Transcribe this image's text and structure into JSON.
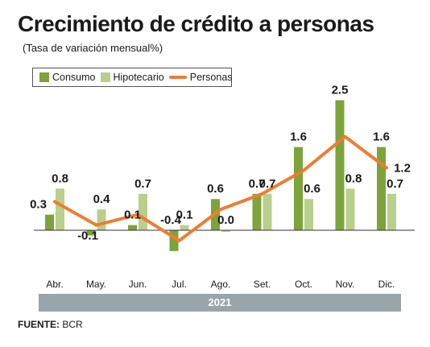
{
  "title": "Crecimiento de crédito a personas",
  "subtitle": "(Tasa de variación mensual%)",
  "source": {
    "label": "FUENTE:",
    "value": "BCR"
  },
  "colors": {
    "consumo": "#7ca43a",
    "hipotecario": "#b9cf8d",
    "personas": "#ee7d31",
    "year_bar": "#98a6ab"
  },
  "chart_data": {
    "type": "bar",
    "categories": [
      "Abr.",
      "May.",
      "Jun.",
      "Jul.",
      "Ago.",
      "Set.",
      "Oct.",
      "Nov.",
      "Dic."
    ],
    "series": [
      {
        "name": "Consumo",
        "type": "bar",
        "values": [
          0.3,
          -0.1,
          0.1,
          -0.4,
          0.6,
          0.7,
          1.6,
          2.5,
          1.6
        ]
      },
      {
        "name": "Hipotecario",
        "type": "bar",
        "values": [
          0.8,
          0.4,
          0.7,
          0.1,
          0.0,
          0.7,
          0.6,
          0.8,
          0.7
        ]
      },
      {
        "name": "Personas",
        "type": "line",
        "values": [
          0.55,
          0.1,
          0.3,
          -0.2,
          0.4,
          0.7,
          1.15,
          1.8,
          1.2
        ]
      }
    ],
    "data_labels": {
      "Consumo": [
        "0.3",
        "-0.1",
        "0.1",
        "-0.4",
        "0.6",
        "0.7",
        "1.6",
        "2.5",
        "1.6"
      ],
      "Hipotecario": [
        "0.8",
        "0.4",
        "0.7",
        "0.1",
        "0.0",
        "0.7",
        "0.6",
        "0.8",
        "0.7"
      ],
      "Personas": [
        "",
        "",
        "",
        "",
        "",
        "",
        "",
        "",
        "1.2"
      ]
    },
    "year_label": "2021",
    "ylim": [
      -0.45,
      2.6
    ],
    "legend": [
      "Consumo",
      "Hipotecario",
      "Personas"
    ],
    "legend_position": "top-left",
    "grid": false
  }
}
